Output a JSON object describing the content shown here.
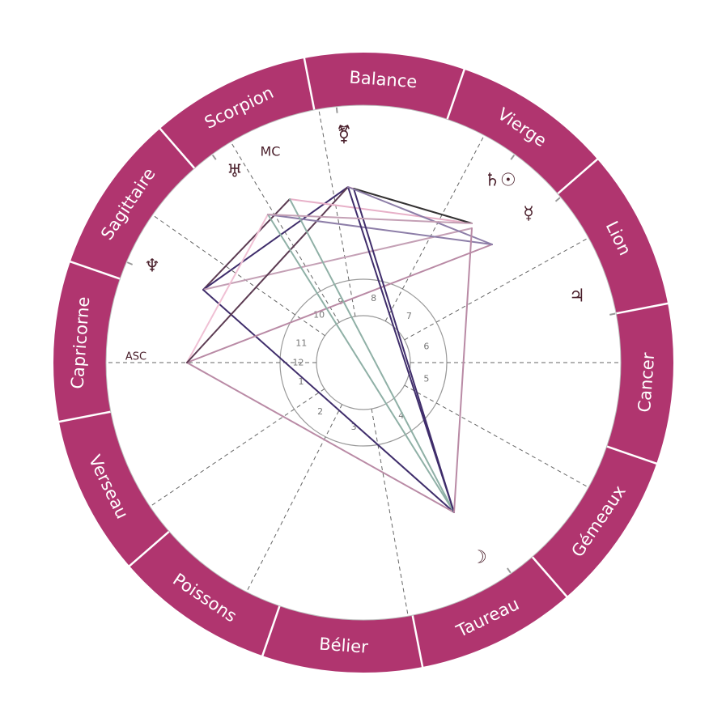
{
  "colors": {
    "band": "#b0356f",
    "band_divider": "#ffffff",
    "house_line": "#666666",
    "inner_circle": "#999999",
    "glyph": "#4a1f2b"
  },
  "signs": [
    {
      "name": "Balance",
      "angle": -86
    },
    {
      "name": "Vierge",
      "angle": -56
    },
    {
      "name": "Lion",
      "angle": -26
    },
    {
      "name": "Cancer",
      "angle": 4
    },
    {
      "name": "Gémeaux",
      "angle": 34
    },
    {
      "name": "Taureau",
      "angle": 64
    },
    {
      "name": "Bélier",
      "angle": 94
    },
    {
      "name": "Poissons",
      "angle": 124
    },
    {
      "name": "Verseau",
      "angle": 154
    },
    {
      "name": "Capricorne",
      "angle": 184
    },
    {
      "name": "Sagittaire",
      "angle": 214
    },
    {
      "name": "Scorpion",
      "angle": 244
    }
  ],
  "houses": [
    {
      "num": "1",
      "cusp": 180
    },
    {
      "num": "2",
      "cusp": 146
    },
    {
      "num": "3",
      "cusp": 117
    },
    {
      "num": "4",
      "cusp": 80
    },
    {
      "num": "5",
      "cusp": 29
    },
    {
      "num": "6",
      "cusp": 0
    },
    {
      "num": "7",
      "cusp": -29
    },
    {
      "num": "8",
      "cusp": -62
    },
    {
      "num": "9",
      "cusp": -100
    },
    {
      "num": "10",
      "cusp": -121
    },
    {
      "num": "11",
      "cusp": -145
    },
    {
      "num": "12",
      "cusp": -180
    }
  ],
  "points": [
    {
      "id": "asc",
      "label": "ASC",
      "angle": 180,
      "size": 13
    },
    {
      "id": "mc",
      "label": "MC",
      "angle": -119,
      "size": 16
    }
  ],
  "planets": [
    {
      "id": "venus-mars",
      "glyph": "⚧",
      "angle": -96,
      "icon": "venus-mars-icon"
    },
    {
      "id": "uranus",
      "glyph": "♅",
      "angle": -126,
      "icon": "uranus-icon"
    },
    {
      "id": "neptune",
      "glyph": "♆",
      "angle": -157,
      "icon": "neptune-icon"
    },
    {
      "id": "saturn-sun",
      "glyph": "♄☉",
      "angle": -54,
      "icon": "saturn-sun-icon"
    },
    {
      "id": "mercury",
      "glyph": "☿",
      "angle": -40,
      "icon": "mercury-icon"
    },
    {
      "id": "jupiter",
      "glyph": "♃",
      "angle": -11,
      "icon": "jupiter-icon"
    },
    {
      "id": "moon",
      "glyph": "☽",
      "angle": 55,
      "icon": "moon-icon"
    }
  ],
  "aspects": [
    {
      "a": "nep",
      "b": "mc",
      "color": "#5c3b52"
    },
    {
      "a": "nep",
      "b": "ven",
      "color": "#3f2d6b"
    },
    {
      "a": "nep",
      "b": "sun",
      "color": "#c4a0b5"
    },
    {
      "a": "nep",
      "b": "moon",
      "color": "#3f2d6b"
    },
    {
      "a": "asc",
      "b": "ura",
      "color": "#f0c0d4"
    },
    {
      "a": "asc",
      "b": "mer",
      "color": "#b98aa5"
    },
    {
      "a": "asc",
      "b": "moon",
      "color": "#b98aa5"
    },
    {
      "a": "asc",
      "b": "ven",
      "color": "#5c3b52"
    },
    {
      "a": "ura",
      "b": "mer",
      "color": "#8d7ea8"
    },
    {
      "a": "ura",
      "b": "moon",
      "color": "#8fb0a6"
    },
    {
      "a": "mc",
      "b": "sat",
      "color": "#e7b0c8"
    },
    {
      "a": "mc",
      "b": "moon",
      "color": "#8fb0a6"
    },
    {
      "a": "ven",
      "b": "moon",
      "color": "#3f2d6b"
    },
    {
      "a": "mar",
      "b": "moon",
      "color": "#3f2d6b"
    },
    {
      "a": "ven",
      "b": "sat",
      "color": "#f0c0d4"
    },
    {
      "a": "mar",
      "b": "sat",
      "color": "#333333"
    },
    {
      "a": "ven",
      "b": "mer",
      "color": "#8d7ea8"
    },
    {
      "a": "sun",
      "b": "moon",
      "color": "#b98aa5"
    },
    {
      "a": "ura",
      "b": "sat",
      "color": "#c4a0b5"
    }
  ]
}
